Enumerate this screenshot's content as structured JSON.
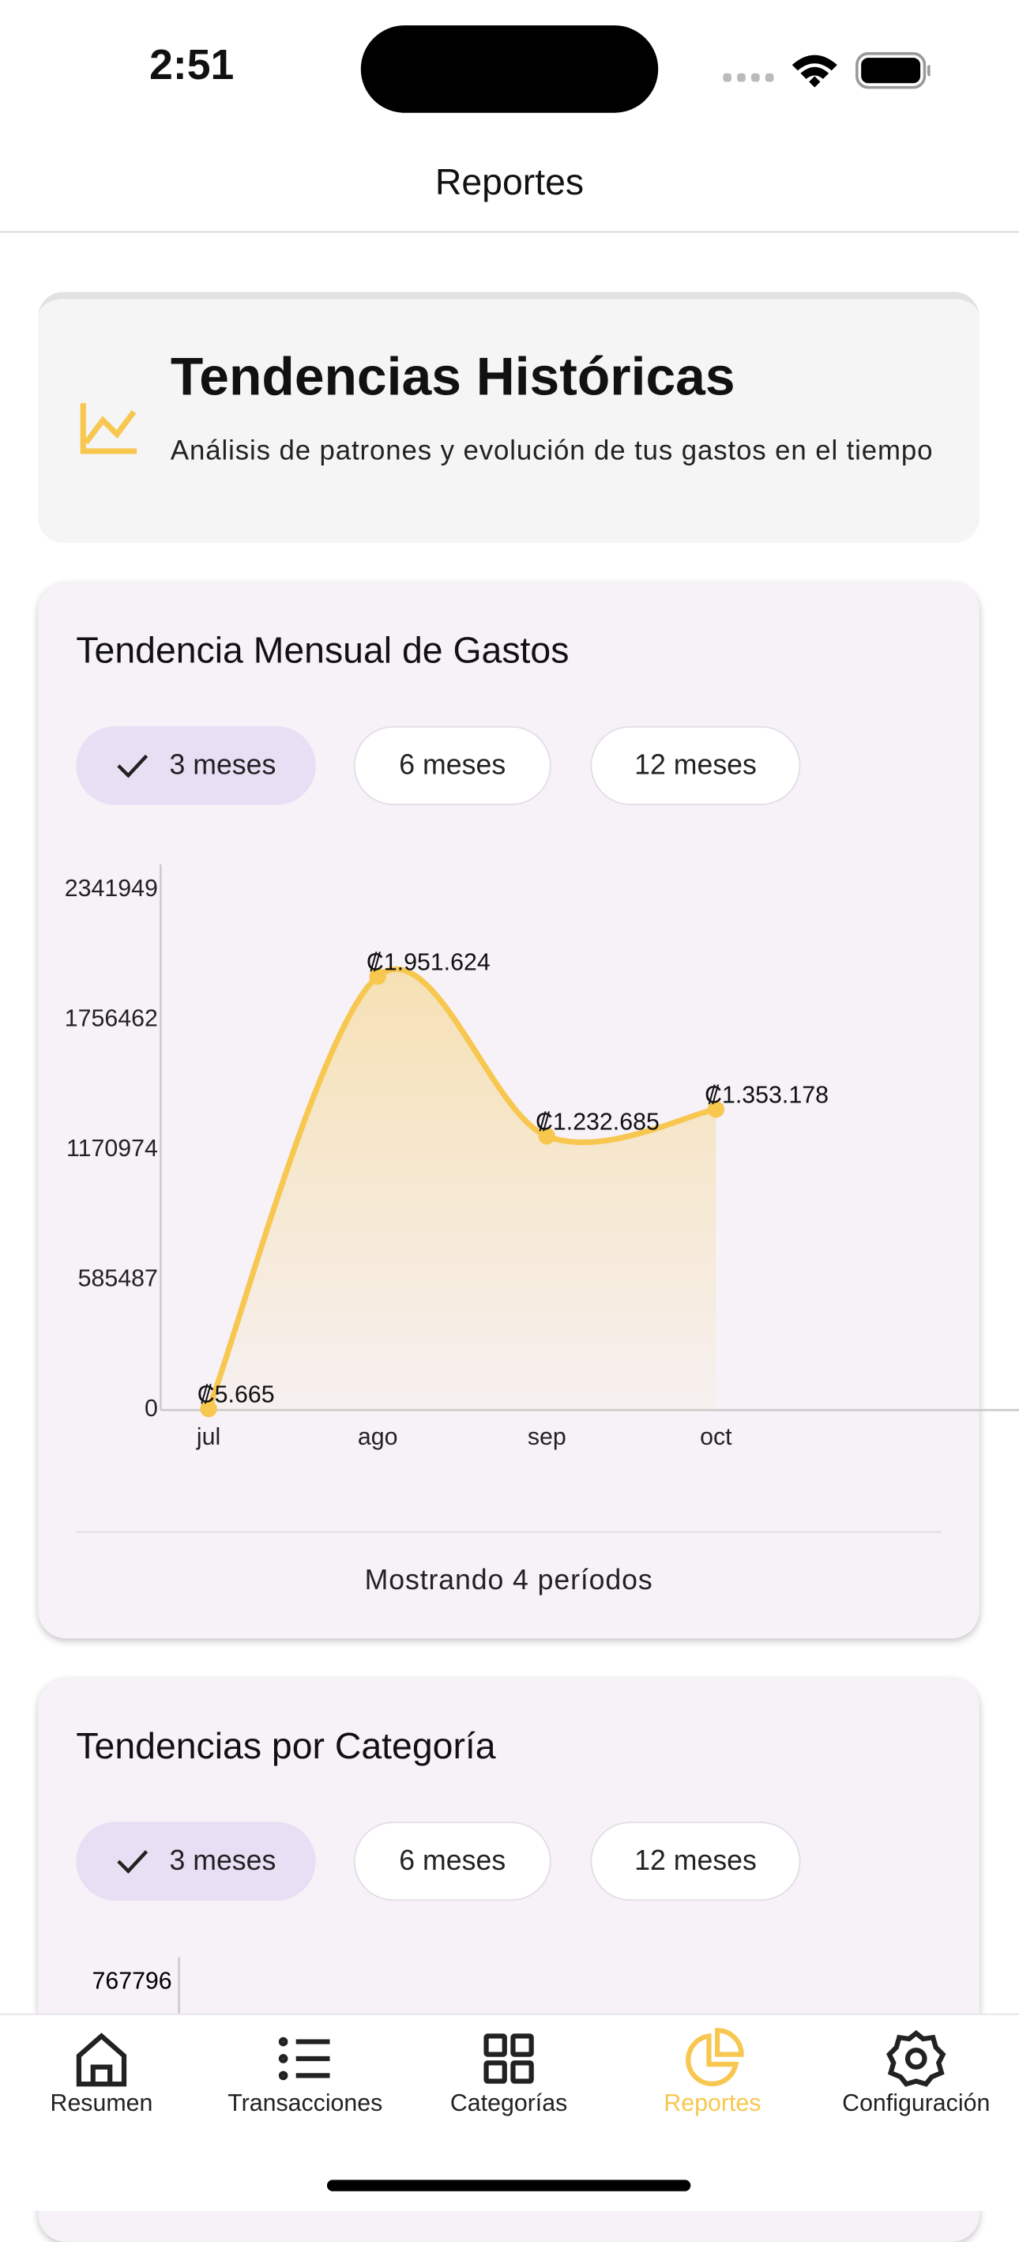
{
  "status_bar": {
    "time": "2:51"
  },
  "header": {
    "title": "Reportes"
  },
  "intro": {
    "title": "Tendencias Históricas",
    "subtitle": "Análisis de patrones y evolución de tus gastos en el tiempo"
  },
  "chart_data": [
    {
      "type": "line",
      "title": "Tendencia Mensual de Gastos",
      "filters": [
        {
          "label": "3 meses",
          "selected": true
        },
        {
          "label": "6 meses",
          "selected": false
        },
        {
          "label": "12 meses",
          "selected": false
        }
      ],
      "categories": [
        "jul",
        "ago",
        "sep",
        "oct"
      ],
      "series": [
        {
          "color": "#f7c74f",
          "values": [
            5665,
            1951624,
            1232685,
            1353178
          ],
          "value_labels": [
            "₡5.665",
            "₡1.951.624",
            "₡1.232.685",
            "₡1.353.178"
          ]
        }
      ],
      "ylim": [
        0,
        2456000
      ],
      "yticks": [
        0,
        585487,
        1170974,
        1756462,
        2341949
      ],
      "footer": "Mostrando 4 períodos"
    },
    {
      "type": "line",
      "title": "Tendencias por Categoría",
      "filters": [
        {
          "label": "3 meses",
          "selected": true
        },
        {
          "label": "6 meses",
          "selected": false
        },
        {
          "label": "12 meses",
          "selected": false
        }
      ],
      "yticks": [
        767796
      ]
    }
  ],
  "tab_bar": {
    "tabs": [
      {
        "label": "Resumen",
        "active": false
      },
      {
        "label": "Transacciones",
        "active": false
      },
      {
        "label": "Categorías",
        "active": false
      },
      {
        "label": "Reportes",
        "active": true
      },
      {
        "label": "Configuración",
        "active": false
      }
    ]
  }
}
